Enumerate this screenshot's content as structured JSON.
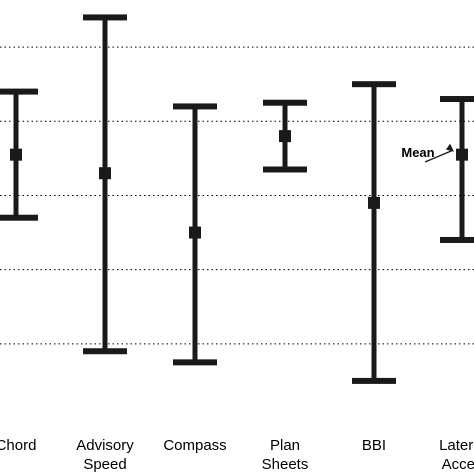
{
  "chart_data": {
    "type": "errorbar",
    "title": "",
    "xlabel": "",
    "ylabel": "",
    "ylim": [
      0,
      11
    ],
    "gridlines_y": [
      2,
      4,
      6,
      8,
      10
    ],
    "grid": "horizontal-dotted",
    "categories": [
      {
        "lines": [
          "Chord"
        ]
      },
      {
        "lines": [
          "Advisory",
          "Speed"
        ]
      },
      {
        "lines": [
          "Compass"
        ]
      },
      {
        "lines": [
          "Plan",
          "Sheets"
        ]
      },
      {
        "lines": [
          "BBI"
        ]
      },
      {
        "lines": [
          "Lateral",
          "Accel."
        ]
      }
    ],
    "series": [
      {
        "mean": [
          7.1,
          6.6,
          5.0,
          7.6,
          5.8,
          7.1
        ],
        "low": [
          5.4,
          1.8,
          1.5,
          6.7,
          1.0,
          4.8
        ],
        "high": [
          8.8,
          10.8,
          8.4,
          8.5,
          9.0,
          8.6
        ]
      }
    ],
    "colors": {
      "bar": "#1a1a1a"
    },
    "annotation": {
      "text": "Mean",
      "category_index": 5
    }
  }
}
